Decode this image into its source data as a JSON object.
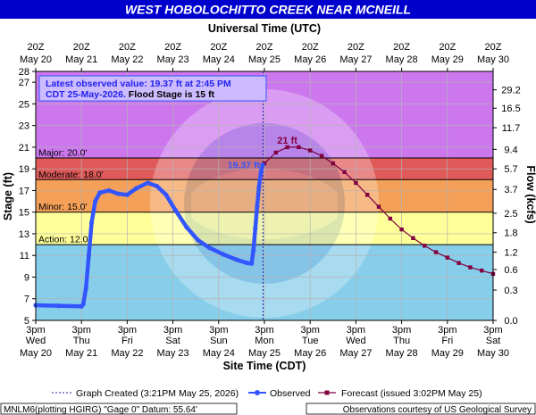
{
  "title": "WEST HOBOLOCHITTO CREEK NEAR MCNEILL",
  "top_axis_title": "Universal Time (UTC)",
  "top_ticks": [
    {
      "t": "20Z",
      "d": "May 20"
    },
    {
      "t": "20Z",
      "d": "May 21"
    },
    {
      "t": "20Z",
      "d": "May 22"
    },
    {
      "t": "20Z",
      "d": "May 23"
    },
    {
      "t": "20Z",
      "d": "May 24"
    },
    {
      "t": "20Z",
      "d": "May 25"
    },
    {
      "t": "20Z",
      "d": "May 26"
    },
    {
      "t": "20Z",
      "d": "May 27"
    },
    {
      "t": "20Z",
      "d": "May 28"
    },
    {
      "t": "20Z",
      "d": "May 29"
    },
    {
      "t": "20Z",
      "d": "May 30"
    }
  ],
  "bottom_axis_title": "Site Time (CDT)",
  "bottom_ticks": [
    {
      "t": "3pm",
      "w": "Wed",
      "d": "May 20"
    },
    {
      "t": "3pm",
      "w": "Thu",
      "d": "May 21"
    },
    {
      "t": "3pm",
      "w": "Fri",
      "d": "May 22"
    },
    {
      "t": "3pm",
      "w": "Sat",
      "d": "May 23"
    },
    {
      "t": "3pm",
      "w": "Sun",
      "d": "May 24"
    },
    {
      "t": "3pm",
      "w": "Mon",
      "d": "May 25"
    },
    {
      "t": "3pm",
      "w": "Tue",
      "d": "May 26"
    },
    {
      "t": "3pm",
      "w": "Wed",
      "d": "May 27"
    },
    {
      "t": "3pm",
      "w": "Thu",
      "d": "May 28"
    },
    {
      "t": "3pm",
      "w": "Fri",
      "d": "May 29"
    },
    {
      "t": "3pm",
      "w": "Sat",
      "d": "May 30"
    }
  ],
  "annotation": {
    "line1": "Latest observed value: 19.37 ft at 2:45 PM",
    "line2a": "CDT 25-May-2026.",
    "line2b": " Flood Stage is 15 ft"
  },
  "legend": {
    "graph_created": "Graph Created (3:21PM May 25, 2026)",
    "observed": "Observed",
    "forecast": "Forecast (issued 3:02PM May 25)"
  },
  "footer_left": "MNLM6(plotting HGIRG) \"Gage 0\" Datum: 55.64'",
  "footer_right": "Observations courtesy of US Geological Survey",
  "colors": {
    "title_bg": "#0000cc",
    "observed": "#3355ff",
    "forecast": "#800040",
    "major": "#e05a5a",
    "moderate": "#f5a058",
    "minor": "#ffff99",
    "above_major": "#cc77ee",
    "graph_created_line": "#2222aa"
  },
  "chart_data": {
    "type": "line",
    "x_unit": "days",
    "x_domain": [
      "May 20 3pm CDT",
      "May 30 3pm CDT"
    ],
    "y_left": {
      "label": "Stage (ft)",
      "min": 5,
      "max": 28,
      "ticks": [
        5,
        7,
        9,
        11,
        13,
        15,
        17,
        19,
        21,
        23,
        25,
        27,
        28
      ]
    },
    "y_right": {
      "label": "Flow (kcfs)",
      "ticks": [
        {
          "stage": 5,
          "label": "0.0"
        },
        {
          "stage": 7.8,
          "label": "0.3"
        },
        {
          "stage": 9.7,
          "label": "0.6"
        },
        {
          "stage": 11.3,
          "label": "1.2"
        },
        {
          "stage": 13.1,
          "label": "1.8"
        },
        {
          "stage": 14.9,
          "label": "2.5"
        },
        {
          "stage": 17.1,
          "label": "3.7"
        },
        {
          "stage": 19.0,
          "label": "5.7"
        },
        {
          "stage": 20.8,
          "label": "9.4"
        },
        {
          "stage": 22.8,
          "label": "11.7"
        },
        {
          "stage": 24.6,
          "label": "16.5"
        },
        {
          "stage": 26.3,
          "label": "29.2"
        }
      ]
    },
    "flood_categories": [
      {
        "name": "Action",
        "label": "Action: 12.0'",
        "stage": 12.0
      },
      {
        "name": "Minor",
        "label": "Minor: 15.0'",
        "stage": 15.0
      },
      {
        "name": "Moderate",
        "label": "Moderate: 18.0'",
        "stage": 18.0
      },
      {
        "name": "Major",
        "label": "Major: 20.0'",
        "stage": 20.0
      }
    ],
    "graph_created_x": 4.97,
    "observed_label": "19.37 ft",
    "forecast_label": "21 ft",
    "series": [
      {
        "name": "Observed",
        "points": [
          [
            0.0,
            6.4
          ],
          [
            0.5,
            6.35
          ],
          [
            1.0,
            6.3
          ],
          [
            1.04,
            6.5
          ],
          [
            1.1,
            8.0
          ],
          [
            1.16,
            11.0
          ],
          [
            1.22,
            14.0
          ],
          [
            1.3,
            16.0
          ],
          [
            1.4,
            16.8
          ],
          [
            1.6,
            17.0
          ],
          [
            1.8,
            16.7
          ],
          [
            2.0,
            16.6
          ],
          [
            2.2,
            17.2
          ],
          [
            2.45,
            17.7
          ],
          [
            2.65,
            17.4
          ],
          [
            2.85,
            16.6
          ],
          [
            3.05,
            15.2
          ],
          [
            3.3,
            13.6
          ],
          [
            3.55,
            12.4
          ],
          [
            3.8,
            11.7
          ],
          [
            4.1,
            11.1
          ],
          [
            4.4,
            10.6
          ],
          [
            4.62,
            10.3
          ],
          [
            4.72,
            10.25
          ],
          [
            4.76,
            11.5
          ],
          [
            4.8,
            13.5
          ],
          [
            4.84,
            15.5
          ],
          [
            4.88,
            17.3
          ],
          [
            4.92,
            18.6
          ],
          [
            4.96,
            19.37
          ]
        ]
      },
      {
        "name": "Forecast",
        "points": [
          [
            5.0,
            19.5
          ],
          [
            5.25,
            20.5
          ],
          [
            5.5,
            21.0
          ],
          [
            5.75,
            21.0
          ],
          [
            6.0,
            20.7
          ],
          [
            6.25,
            20.2
          ],
          [
            6.5,
            19.5
          ],
          [
            6.75,
            18.7
          ],
          [
            7.0,
            17.7
          ],
          [
            7.25,
            16.6
          ],
          [
            7.5,
            15.5
          ],
          [
            7.75,
            14.4
          ],
          [
            8.0,
            13.4
          ],
          [
            8.25,
            12.6
          ],
          [
            8.5,
            11.9
          ],
          [
            8.75,
            11.3
          ],
          [
            9.0,
            10.8
          ],
          [
            9.25,
            10.3
          ],
          [
            9.5,
            9.9
          ],
          [
            9.75,
            9.6
          ],
          [
            10.0,
            9.3
          ]
        ]
      }
    ]
  }
}
